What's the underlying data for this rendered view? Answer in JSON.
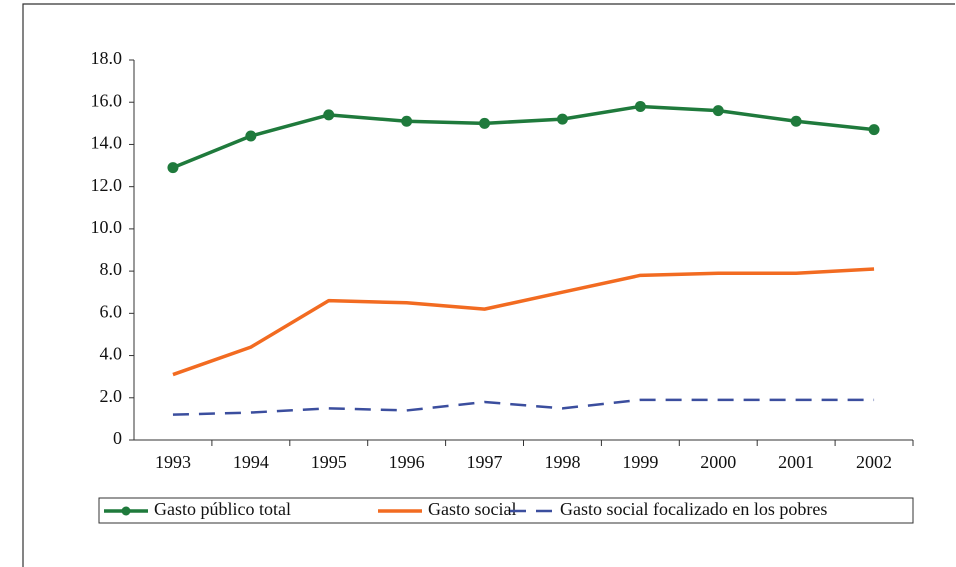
{
  "chart_data": {
    "type": "line",
    "categories": [
      "1993",
      "1994",
      "1995",
      "1996",
      "1997",
      "1998",
      "1999",
      "2000",
      "2001",
      "2002"
    ],
    "series": [
      {
        "name": "Gasto público total",
        "color": "#1f7a3c",
        "marker": true,
        "dash": false,
        "values": [
          12.9,
          14.4,
          15.4,
          15.1,
          15.0,
          15.2,
          15.8,
          15.6,
          15.1,
          14.7
        ]
      },
      {
        "name": "Gasto social",
        "color": "#f26b21",
        "marker": false,
        "dash": false,
        "values": [
          3.1,
          4.4,
          6.6,
          6.5,
          6.2,
          7.0,
          7.8,
          7.9,
          7.9,
          8.1
        ]
      },
      {
        "name": "Gasto social focalizado en los pobres",
        "color": "#3b4e9e",
        "marker": false,
        "dash": true,
        "values": [
          1.2,
          1.3,
          1.5,
          1.4,
          1.8,
          1.5,
          1.9,
          1.9,
          1.9,
          1.9
        ]
      }
    ],
    "ylim": [
      0,
      18
    ],
    "yticks": [
      0,
      {
        "value": 2,
        "label": "2.0"
      },
      {
        "value": 4,
        "label": "4.0"
      },
      {
        "value": 6,
        "label": "6.0"
      },
      {
        "value": 8,
        "label": "8.0"
      },
      {
        "value": 10,
        "label": "10.0"
      },
      {
        "value": 12,
        "label": "12.0"
      },
      {
        "value": 14,
        "label": "14.0"
      },
      {
        "value": 16,
        "label": "16.0"
      },
      {
        "value": 18,
        "label": "18.0"
      }
    ],
    "grid": false
  }
}
